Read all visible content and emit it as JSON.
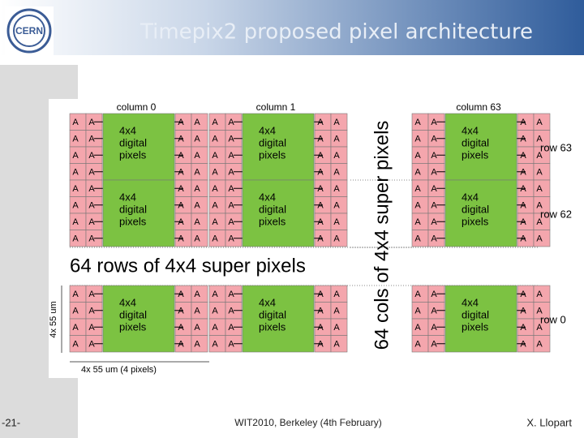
{
  "header": {
    "title": "Timepix2 proposed pixel architecture",
    "logo": "CERN"
  },
  "diagram": {
    "column_labels": [
      "column 0",
      "column 1",
      "column 63"
    ],
    "row_labels": [
      "row 63",
      "row 62",
      "row 0"
    ],
    "cell_label": "A",
    "block_label": [
      "4x4",
      "digital",
      "pixels"
    ],
    "rows_text": "64 rows of 4x4 super pixels",
    "cols_text": "64 cols of 4x4 super pixels",
    "dim_vertical": "4x 55 um",
    "dim_horizontal": "4x 55 um (4 pixels)"
  },
  "footer": {
    "page": "-21-",
    "event": "WIT2010, Berkeley (4th February)",
    "author": "X. Llopart"
  }
}
